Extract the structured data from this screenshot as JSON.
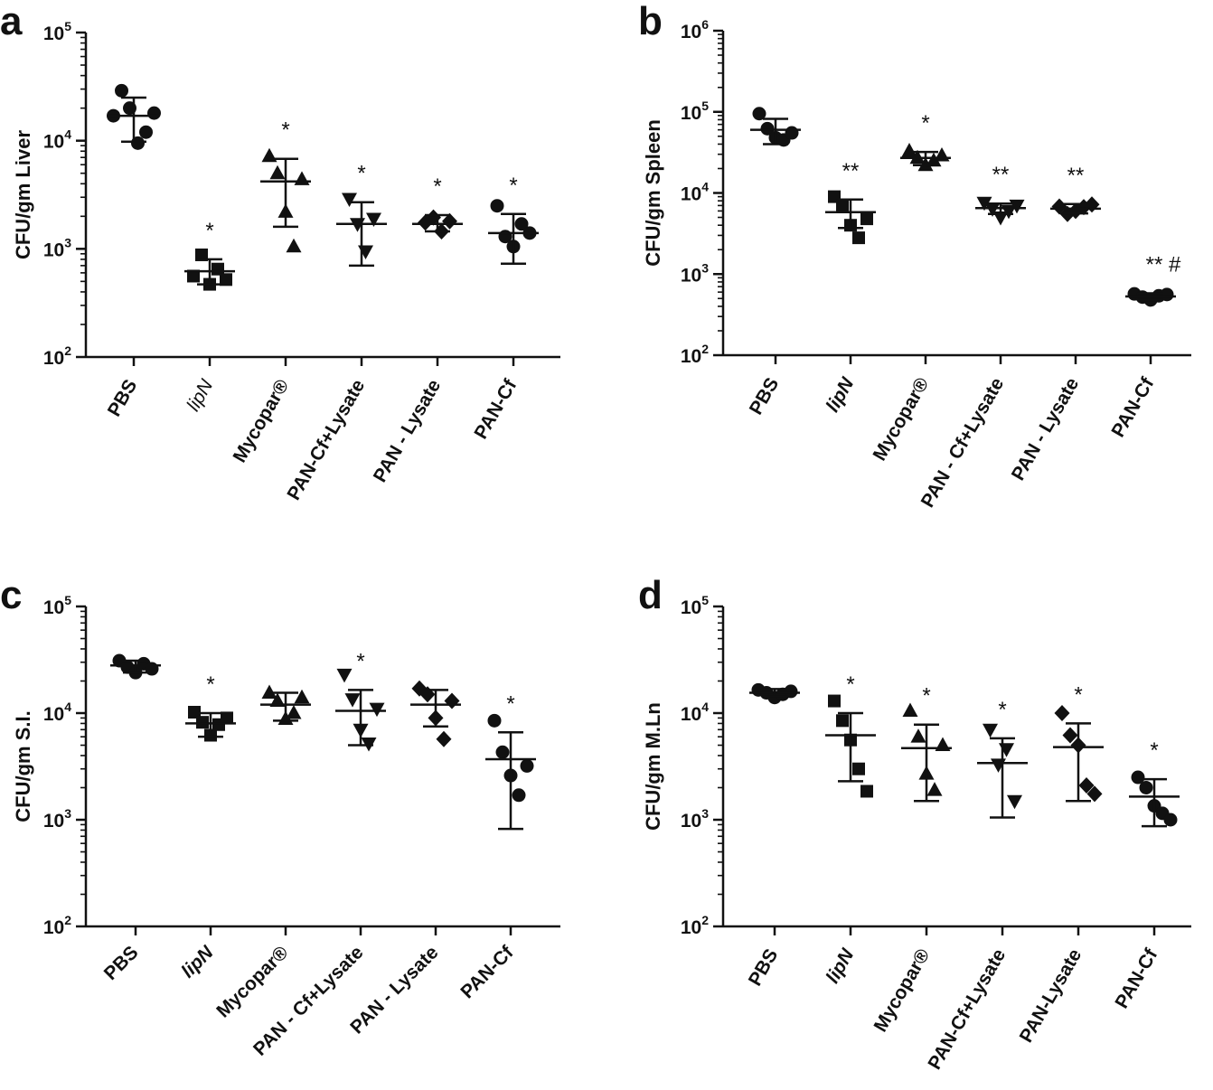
{
  "chart_data": [
    {
      "panel_label": "a",
      "type": "scatter",
      "ylabel": "CFU/gm Liver",
      "yscale": "log",
      "ylim_exp": [
        2,
        5
      ],
      "categories": [
        "PBS",
        "lipN",
        "Mycopar®",
        "PAN-Cf+Lysate",
        "PAN - Lysate",
        "PAN-Cf"
      ],
      "category_style": [
        "bold",
        "italic-light",
        "bold",
        "bold",
        "bold",
        "bold"
      ],
      "markers": [
        "circle",
        "square",
        "triangle",
        "triangle-down",
        "diamond",
        "circle"
      ],
      "points": [
        [
          17000,
          29000,
          20000,
          9500,
          12000,
          18000
        ],
        [
          560,
          880,
          470,
          650,
          520
        ],
        [
          7200,
          5000,
          2200,
          1050,
          4400
        ],
        [
          2900,
          1700,
          950,
          1900
        ],
        [
          1750,
          1950,
          1450,
          1800
        ],
        [
          2500,
          1300,
          1050,
          1700,
          1400
        ]
      ],
      "mean": [
        17000,
        620,
        4200,
        1700,
        1700,
        1400
      ],
      "upper": [
        25000,
        800,
        6800,
        2700,
        2050,
        2100
      ],
      "lower": [
        9800,
        470,
        1600,
        700,
        1450,
        730
      ],
      "significance": [
        "",
        "*",
        "*",
        "*",
        "*",
        "*"
      ]
    },
    {
      "panel_label": "b",
      "type": "scatter",
      "ylabel": "CFU/gm Spleen",
      "yscale": "log",
      "ylim_exp": [
        2,
        6
      ],
      "categories": [
        "PBS",
        "lipN",
        "Mycopar®",
        "PAN - Cf+Lysate",
        "PAN - Lysate",
        "PAN-Cf"
      ],
      "category_style": [
        "bold",
        "italic",
        "bold",
        "bold",
        "bold",
        "bold"
      ],
      "markers": [
        "circle",
        "square",
        "triangle",
        "triangle-down",
        "diamond",
        "circle"
      ],
      "points": [
        [
          95000,
          62000,
          48000,
          45000,
          55000
        ],
        [
          9000,
          7000,
          4000,
          2800,
          4800
        ],
        [
          33000,
          27000,
          22000,
          25000,
          29000
        ],
        [
          7600,
          6400,
          5000,
          6000,
          7000
        ],
        [
          6800,
          5500,
          6000,
          6700,
          7200
        ],
        [
          570,
          520,
          480,
          540,
          560
        ]
      ],
      "mean": [
        60000,
        5800,
        27000,
        6500,
        6400,
        530
      ],
      "upper": [
        82000,
        8300,
        32000,
        7400,
        7300,
        580
      ],
      "lower": [
        40000,
        3700,
        22000,
        5500,
        5600,
        480
      ],
      "significance": [
        "",
        "**",
        "*",
        "**",
        "**",
        "** #"
      ]
    },
    {
      "panel_label": "c",
      "type": "scatter",
      "ylabel": "CFU/gm S.I.",
      "yscale": "log",
      "ylim_exp": [
        2,
        5
      ],
      "categories": [
        "PBS",
        "lipN",
        "Mycopar®",
        "PAN - Cf+Lysate",
        "PAN - Lysate",
        "PAN-Cf"
      ],
      "category_style": [
        "bold",
        "italic",
        "bold",
        "bold",
        "bold",
        "bold"
      ],
      "markers": [
        "circle",
        "square",
        "triangle",
        "triangle-down",
        "diamond",
        "circle"
      ],
      "points": [
        [
          31000,
          27000,
          24000,
          29000,
          26000
        ],
        [
          10200,
          8200,
          6200,
          7800,
          9000
        ],
        [
          15500,
          13000,
          8800,
          10000,
          14000
        ],
        [
          23000,
          13500,
          7000,
          5200,
          11000
        ],
        [
          17000,
          15000,
          9000,
          5700,
          13000
        ],
        [
          8500,
          4300,
          2600,
          1700,
          3200
        ]
      ],
      "mean": [
        28000,
        8000,
        12000,
        10500,
        12000,
        3700
      ],
      "upper": [
        31000,
        10000,
        15500,
        16500,
        16500,
        6600
      ],
      "lower": [
        24000,
        6000,
        8500,
        5000,
        7500,
        820
      ],
      "significance": [
        "",
        "*",
        "",
        "*",
        "",
        "*"
      ]
    },
    {
      "panel_label": "d",
      "type": "scatter",
      "ylabel": "CFU/gm M.Ln",
      "yscale": "log",
      "ylim_exp": [
        2,
        5
      ],
      "categories": [
        "PBS",
        "lipN",
        "Mycopar®",
        "PAN-Cf+Lysate",
        "PAN-Lysate",
        "PAN-Cf"
      ],
      "category_style": [
        "bold",
        "italic",
        "bold",
        "bold",
        "bold",
        "bold"
      ],
      "markers": [
        "circle",
        "square",
        "triangle",
        "triangle-down",
        "diamond",
        "circle"
      ],
      "points": [
        [
          16500,
          15500,
          14000,
          15000,
          16000
        ],
        [
          13000,
          8500,
          5600,
          3000,
          1850
        ],
        [
          10500,
          6000,
          2700,
          1900,
          5000
        ],
        [
          7000,
          3300,
          4600,
          1500
        ],
        [
          10000,
          6200,
          5000,
          2100,
          1750
        ],
        [
          2500,
          2000,
          1350,
          1150,
          1000
        ]
      ],
      "mean": [
        15500,
        6200,
        4700,
        3400,
        4800,
        1650
      ],
      "upper": [
        16800,
        10000,
        7800,
        5800,
        8000,
        2400
      ],
      "lower": [
        14300,
        2300,
        1500,
        1050,
        1500,
        870
      ],
      "significance": [
        "",
        "*",
        "*",
        "*",
        "*",
        "*"
      ]
    }
  ]
}
